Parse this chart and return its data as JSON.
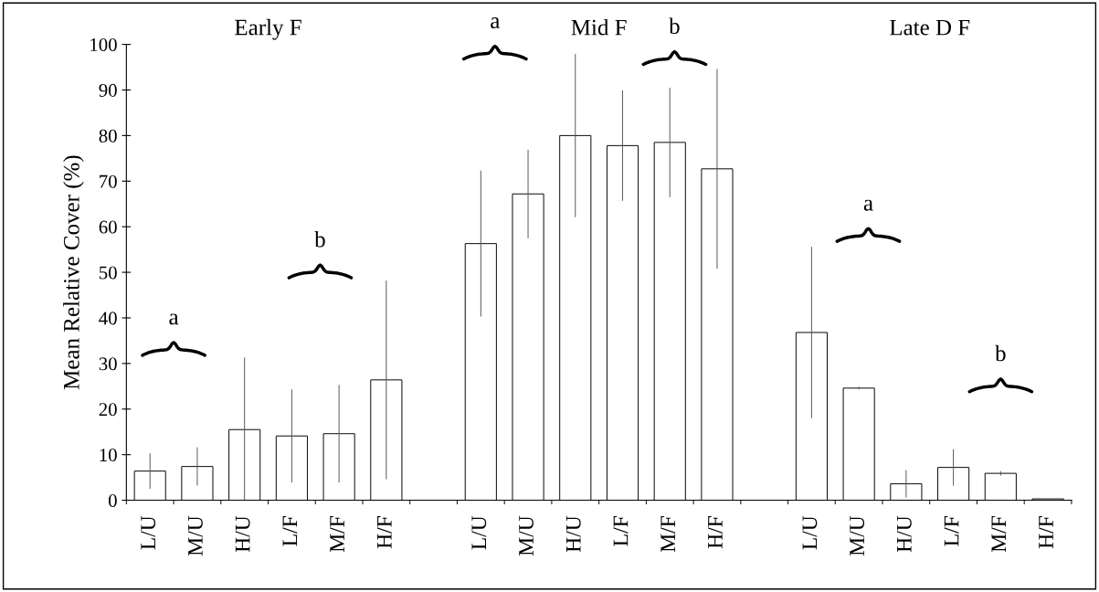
{
  "chart_data": {
    "type": "bar",
    "ylabel": "Mean Relative Cover (%)",
    "categories": [
      "L/U",
      "M/U",
      "H/U",
      "L/F",
      "M/F",
      "H/F",
      null,
      "L/U",
      "M/U",
      "H/U",
      "L/F",
      "M/F",
      "H/F",
      null,
      "L/U",
      "M/U",
      "H/U",
      "L/F",
      "M/F",
      "H/F"
    ],
    "values": [
      6.4,
      7.4,
      15.5,
      14.1,
      14.6,
      26.4,
      null,
      56.3,
      67.2,
      80.0,
      77.8,
      78.5,
      72.7,
      null,
      36.8,
      24.6,
      3.6,
      7.2,
      5.9,
      0.3
    ],
    "errors": [
      3.9,
      4.2,
      15.8,
      10.2,
      10.7,
      21.8,
      null,
      16,
      9.7,
      17.9,
      12.1,
      12,
      21.9,
      null,
      18.8,
      0.3,
      3,
      4,
      0.5,
      null
    ],
    "color": "#ffffff",
    "ylim": [
      0,
      100
    ],
    "yticks": [
      0,
      10,
      20,
      30,
      40,
      50,
      60,
      70,
      80,
      90,
      100
    ],
    "grid": false,
    "legend": false,
    "annotations": [
      "Early F",
      "a",
      "b",
      "Mid F",
      "a",
      "b",
      "Late D F",
      "a",
      "b"
    ]
  }
}
